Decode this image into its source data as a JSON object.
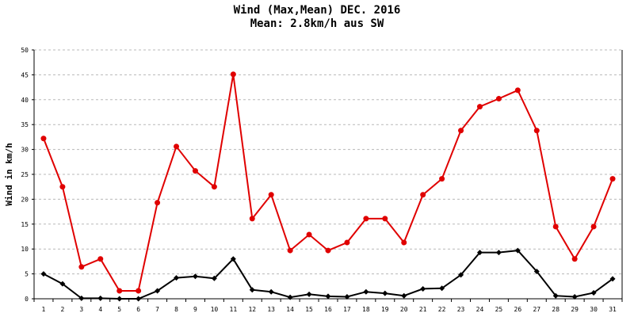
{
  "chart_data": {
    "type": "line",
    "title": "Wind (Max,Mean) DEC. 2016",
    "subtitle": "Mean: 2.8km/h aus SW",
    "xlabel": "",
    "ylabel": "Wind in km/h",
    "categories": [
      "1",
      "2",
      "3",
      "4",
      "5",
      "6",
      "7",
      "8",
      "9",
      "10",
      "11",
      "12",
      "13",
      "14",
      "15",
      "16",
      "17",
      "18",
      "19",
      "20",
      "21",
      "22",
      "23",
      "24",
      "25",
      "26",
      "27",
      "28",
      "29",
      "30",
      "31"
    ],
    "ylim": [
      0,
      50
    ],
    "yticks": [
      0,
      5,
      10,
      15,
      20,
      25,
      30,
      35,
      40,
      45,
      50
    ],
    "grid": true,
    "legend": "none",
    "series": [
      {
        "color": "#e00000",
        "marker": "circle",
        "values": [
          32.2,
          22.5,
          6.4,
          8.0,
          1.6,
          1.6,
          19.3,
          30.6,
          25.7,
          22.5,
          45.1,
          16.1,
          20.9,
          9.7,
          12.9,
          9.7,
          11.3,
          16.1,
          16.1,
          11.3,
          20.9,
          24.1,
          33.8,
          38.6,
          40.2,
          41.9,
          33.8,
          14.5,
          8.0,
          14.5,
          24.1
        ]
      },
      {
        "color": "#000000",
        "marker": "diamond",
        "values": [
          5.0,
          3.0,
          0.1,
          0.1,
          0.0,
          0.0,
          1.6,
          4.2,
          4.5,
          4.1,
          8.0,
          1.8,
          1.4,
          0.3,
          0.9,
          0.5,
          0.4,
          1.4,
          1.1,
          0.6,
          2.0,
          2.1,
          4.8,
          9.3,
          9.3,
          9.7,
          5.5,
          0.6,
          0.4,
          1.2,
          4.0
        ]
      }
    ]
  }
}
